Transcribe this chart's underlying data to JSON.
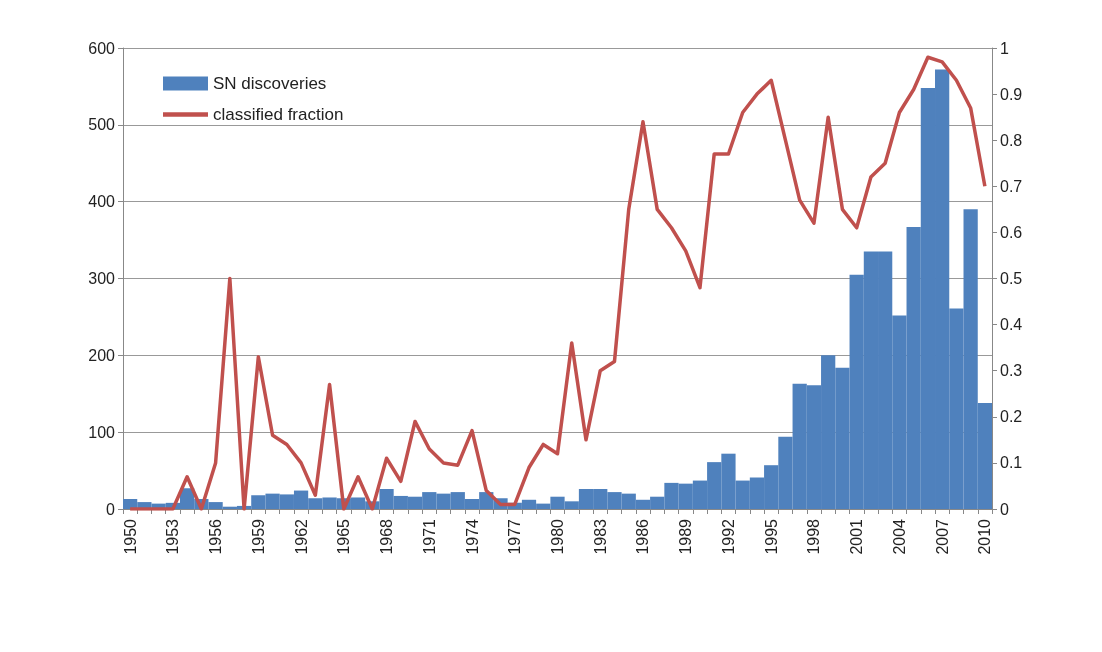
{
  "chart_data": {
    "type": "bar",
    "categories": [
      "1950",
      null,
      null,
      "1953",
      null,
      null,
      "1956",
      null,
      null,
      "1959",
      null,
      null,
      "1962",
      null,
      null,
      "1965",
      null,
      null,
      "1968",
      null,
      null,
      "1971",
      null,
      null,
      "1974",
      null,
      null,
      "1977",
      null,
      null,
      "1980",
      null,
      null,
      "1983",
      null,
      null,
      "1986",
      null,
      null,
      "1989",
      null,
      null,
      "1992",
      null,
      null,
      "1995",
      null,
      null,
      "1998",
      null,
      null,
      "2001",
      null,
      null,
      "2004",
      null,
      null,
      "2007",
      null,
      null,
      "2010"
    ],
    "series": [
      {
        "name": "SN discoveries",
        "color": "#4f81bd",
        "values": [
          13,
          9,
          7,
          8,
          27,
          13,
          9,
          3,
          4,
          18,
          20,
          19,
          24,
          14,
          15,
          14,
          15,
          10,
          26,
          17,
          16,
          22,
          20,
          22,
          13,
          22,
          14,
          8,
          12,
          7,
          16,
          10,
          26,
          26,
          22,
          20,
          12,
          16,
          34,
          33,
          37,
          61,
          72,
          37,
          41,
          57,
          94,
          163,
          161,
          200,
          184,
          305,
          335,
          335,
          252,
          367,
          548,
          572,
          261,
          390,
          138
        ]
      },
      {
        "name": "classified fraction",
        "type": "line",
        "axis": "y2",
        "color": "#c0504d",
        "values": [
          0,
          0,
          0,
          0,
          0.07,
          0,
          0.1,
          0.5,
          0,
          0.33,
          0.16,
          0.14,
          0.1,
          0.03,
          0.27,
          0,
          0.07,
          0,
          0.11,
          0.06,
          0.19,
          0.13,
          0.1,
          0.095,
          0.17,
          0.04,
          0.01,
          0.01,
          0.09,
          0.14,
          0.12,
          0.36,
          0.15,
          0.3,
          0.32,
          0.65,
          0.84,
          0.65,
          0.61,
          0.56,
          0.48,
          0.77,
          0.77,
          0.86,
          0.9,
          0.93,
          0.8,
          0.67,
          0.62,
          0.85,
          0.65,
          0.61,
          0.72,
          0.75,
          0.86,
          0.91,
          0.98,
          0.97,
          0.93,
          0.87,
          0.7
        ]
      }
    ],
    "ylim": [
      0,
      600
    ],
    "yticks": [
      0,
      100,
      200,
      300,
      400,
      500,
      600
    ],
    "y2lim": [
      0,
      1
    ],
    "y2ticks": [
      0,
      0.1,
      0.2,
      0.3,
      0.4,
      0.5,
      0.6,
      0.7,
      0.8,
      0.9,
      1
    ],
    "grid": "y",
    "legend": "top left",
    "marker": "none",
    "line_style": "solid"
  }
}
